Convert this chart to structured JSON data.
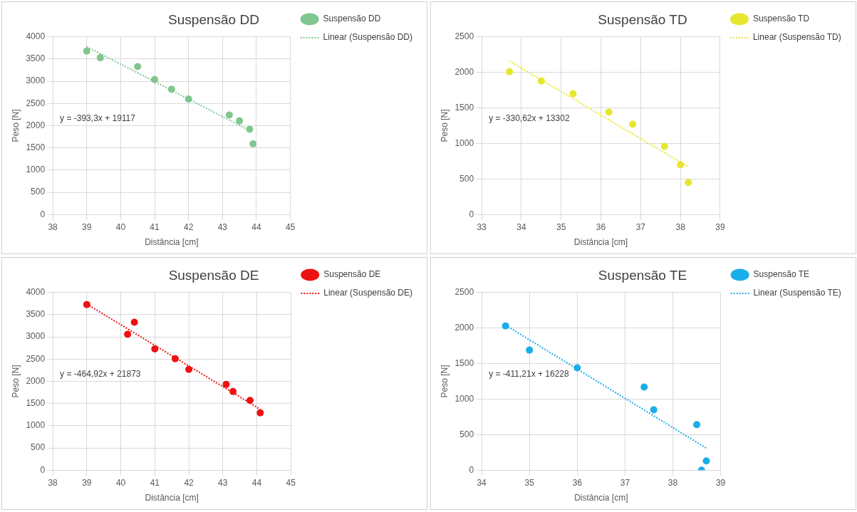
{
  "chart_data": [
    {
      "type": "scatter",
      "title": "Suspensão DD",
      "xlabel": "Distância [cm]",
      "ylabel": "Peso [N]",
      "xlim": [
        38,
        45
      ],
      "xticks": [
        38,
        39,
        40,
        41,
        42,
        43,
        44,
        45
      ],
      "ylim": [
        0,
        4000
      ],
      "yticks": [
        0,
        500,
        1000,
        1500,
        2000,
        2500,
        3000,
        3500,
        4000
      ],
      "grid": true,
      "legend": "top right",
      "marker": "circle",
      "annotations": [
        "y = -393,3x + 19117"
      ],
      "series": [
        {
          "name": "Suspensão DD",
          "color": "#7fc68f",
          "x": [
            39,
            39.4,
            40.5,
            41,
            41.5,
            42,
            43.2,
            43.5,
            43.8,
            43.9
          ],
          "values": [
            3680,
            3530,
            3330,
            3040,
            2820,
            2600,
            2240,
            2110,
            1920,
            1590
          ]
        },
        {
          "name": "Linear (Suspensão DD)",
          "type": "line",
          "color": "#7fc68f",
          "line_style": "dotted",
          "marker": "none",
          "x": [
            39,
            43.8
          ],
          "values": [
            3780,
            1890
          ]
        }
      ]
    },
    {
      "type": "scatter",
      "title": "Suspensão TD",
      "xlabel": "Distância [cm]",
      "ylabel": "Peso [N]",
      "xlim": [
        33,
        39
      ],
      "xticks": [
        33,
        34,
        35,
        36,
        37,
        38,
        39
      ],
      "ylim": [
        0,
        2500
      ],
      "yticks": [
        0,
        500,
        1000,
        1500,
        2000,
        2500
      ],
      "grid": true,
      "legend": "top right",
      "marker": "circle",
      "annotations": [
        "y = -330,62x + 13302"
      ],
      "series": [
        {
          "name": "Suspensão TD",
          "color": "#e6e62e",
          "x": [
            33.7,
            34.5,
            35.3,
            36.2,
            36.8,
            37.6,
            38,
            38.2
          ],
          "values": [
            2010,
            1880,
            1700,
            1440,
            1270,
            960,
            700,
            450
          ]
        },
        {
          "name": "Linear (Suspensão TD)",
          "type": "line",
          "color": "#e6e62e",
          "line_style": "dotted",
          "marker": "none",
          "x": [
            33.7,
            38.2
          ],
          "values": [
            2160,
            670
          ]
        }
      ]
    },
    {
      "type": "scatter",
      "title": "Suspensão DE",
      "xlabel": "Distância [cm]",
      "ylabel": "Peso [N]",
      "xlim": [
        38,
        45
      ],
      "xticks": [
        38,
        39,
        40,
        41,
        42,
        43,
        44,
        45
      ],
      "ylim": [
        0,
        4000
      ],
      "yticks": [
        0,
        500,
        1000,
        1500,
        2000,
        2500,
        3000,
        3500,
        4000
      ],
      "grid": true,
      "legend": "top right",
      "marker": "circle",
      "annotations": [
        "y = -464,92x + 21873"
      ],
      "series": [
        {
          "name": "Suspensão DE",
          "color": "#ee1111",
          "x": [
            39,
            40.2,
            40.4,
            41,
            41.6,
            42,
            43.1,
            43.3,
            43.8,
            44.1
          ],
          "values": [
            3730,
            3060,
            3330,
            2730,
            2510,
            2270,
            1930,
            1770,
            1570,
            1290
          ]
        },
        {
          "name": "Linear (Suspensão DE)",
          "type": "line",
          "color": "#ee1111",
          "line_style": "dotted",
          "marker": "none",
          "x": [
            39,
            44.1
          ],
          "values": [
            3740,
            1370
          ]
        }
      ]
    },
    {
      "type": "scatter",
      "title": "Suspensão TE",
      "xlabel": "Distância [cm]",
      "ylabel": "Peso [N]",
      "xlim": [
        34,
        39
      ],
      "xticks": [
        34,
        35,
        36,
        37,
        38,
        39
      ],
      "ylim": [
        0,
        2500
      ],
      "yticks": [
        0,
        500,
        1000,
        1500,
        2000,
        2500
      ],
      "grid": true,
      "legend": "top right",
      "marker": "circle",
      "annotations": [
        "y = -411,21x + 16228"
      ],
      "series": [
        {
          "name": "Suspensão TE",
          "color": "#1aaee8",
          "x": [
            34.5,
            35,
            36,
            37.4,
            37.6,
            38.5,
            38.7,
            38.6
          ],
          "values": [
            2030,
            1690,
            1440,
            1170,
            850,
            640,
            130,
            0
          ]
        },
        {
          "name": "Linear (Suspensão TE)",
          "type": "line",
          "color": "#1aaee8",
          "line_style": "dotted",
          "marker": "none",
          "x": [
            34.5,
            38.7
          ],
          "values": [
            2040,
            310
          ]
        }
      ]
    }
  ]
}
